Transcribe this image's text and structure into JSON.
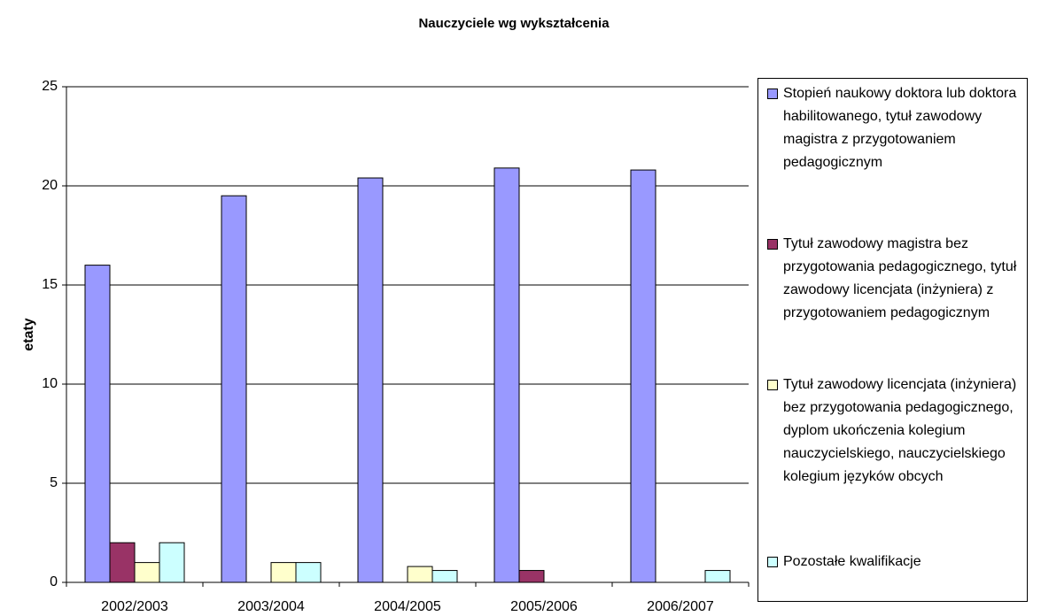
{
  "chart_data": {
    "type": "bar",
    "title": "Nauczyciele wg wykształcenia",
    "y_label": "etaty",
    "categories": [
      "2002/2003",
      "2003/2004",
      "2004/2005",
      "2005/2006",
      "2006/2007"
    ],
    "series": [
      {
        "name": "Stopień naukowy doktora lub doktora habilitowanego, tytuł zawodowy magistra z przygotowaniem pedagogicznym",
        "color": "#9999ff",
        "values": [
          16,
          19.5,
          20.4,
          20.9,
          20.8
        ]
      },
      {
        "name": "Tytuł zawodowy magistra bez przygotowania pedagogicznego, tytuł zawodowy licencjata (inżyniera) z przygotowaniem pedagogicznym",
        "color": "#993366",
        "values": [
          2,
          0,
          0,
          0.6,
          0
        ]
      },
      {
        "name": "Tytuł zawodowy licencjata (inżyniera) bez przygotowania pedagogicznego, dyplom ukończenia kolegium nauczycielskiego, nauczycielskiego kolegium języków obcych",
        "color": "#ffffcc",
        "values": [
          1,
          1,
          0.8,
          0,
          0
        ]
      },
      {
        "name": "Pozostałe kwalifikacje",
        "color": "#ccffff",
        "values": [
          2,
          1,
          0.6,
          0,
          0.6
        ]
      }
    ],
    "ylim": [
      0,
      25
    ],
    "yticks": [
      0,
      5,
      10,
      15,
      20,
      25
    ],
    "grid": true
  }
}
